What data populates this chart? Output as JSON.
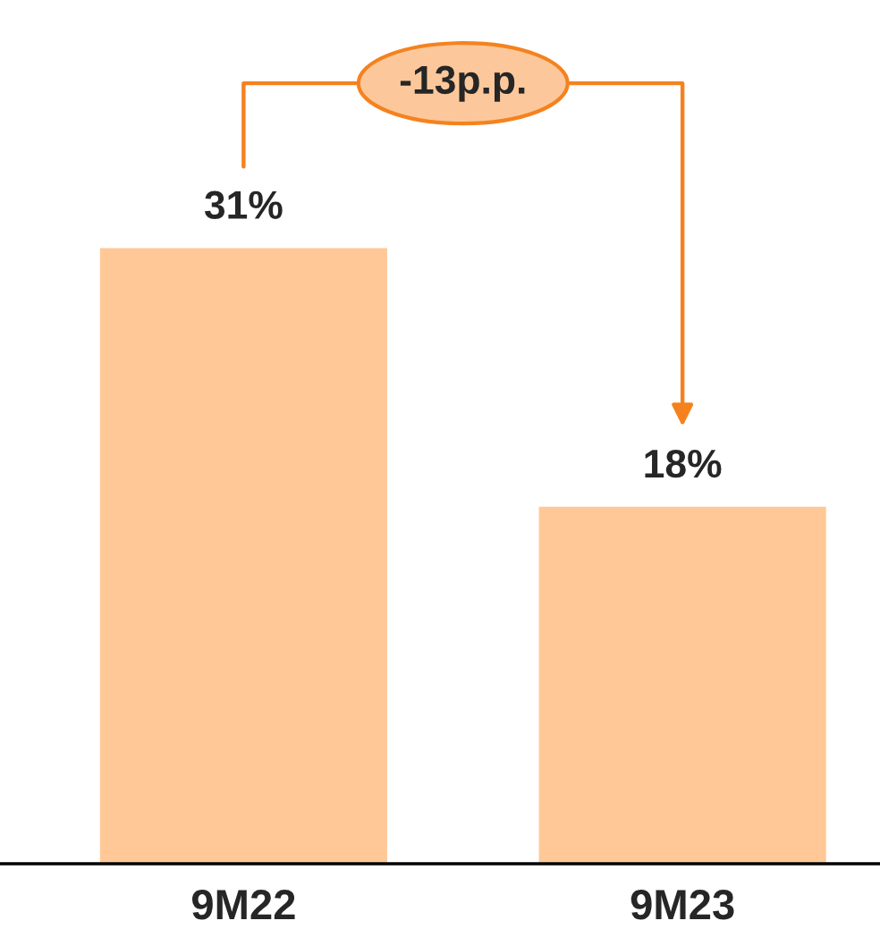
{
  "chart_data": {
    "type": "bar",
    "categories": [
      "9M22",
      "9M23"
    ],
    "values": [
      31,
      18
    ],
    "value_labels": [
      "31%",
      "18%"
    ],
    "color": "#ffc896",
    "annotations": [
      "-13p.p."
    ]
  }
}
